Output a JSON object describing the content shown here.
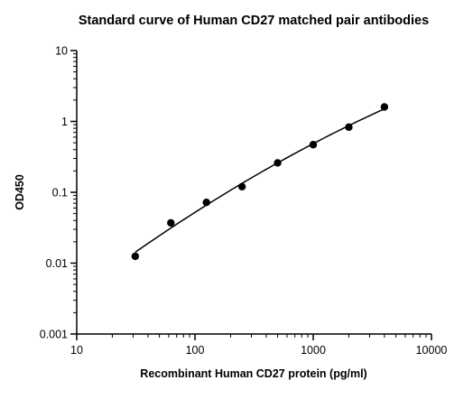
{
  "chart_data": {
    "type": "scatter",
    "title": "Standard curve of Human CD27 matched pair antibodies",
    "xlabel": "Recombinant Human CD27 protein (pg/ml)",
    "ylabel": "OD450",
    "x_scale": "log",
    "y_scale": "log",
    "xlim": [
      10,
      10000
    ],
    "ylim": [
      0.001,
      10
    ],
    "x_ticks": [
      "10",
      "100",
      "1000",
      "10000"
    ],
    "y_ticks": [
      "0.001",
      "0.01",
      "0.1",
      "1",
      "10"
    ],
    "grid": false,
    "legend": "none",
    "series": [
      {
        "points": [
          {
            "x": 31.25,
            "y": 0.0125
          },
          {
            "x": 62.5,
            "y": 0.037
          },
          {
            "x": 125,
            "y": 0.072
          },
          {
            "x": 250,
            "y": 0.12
          },
          {
            "x": 500,
            "y": 0.26
          },
          {
            "x": 1000,
            "y": 0.47
          },
          {
            "x": 2000,
            "y": 0.83
          },
          {
            "x": 4000,
            "y": 1.6
          }
        ],
        "fit": "curve",
        "color": "#000000"
      }
    ]
  }
}
